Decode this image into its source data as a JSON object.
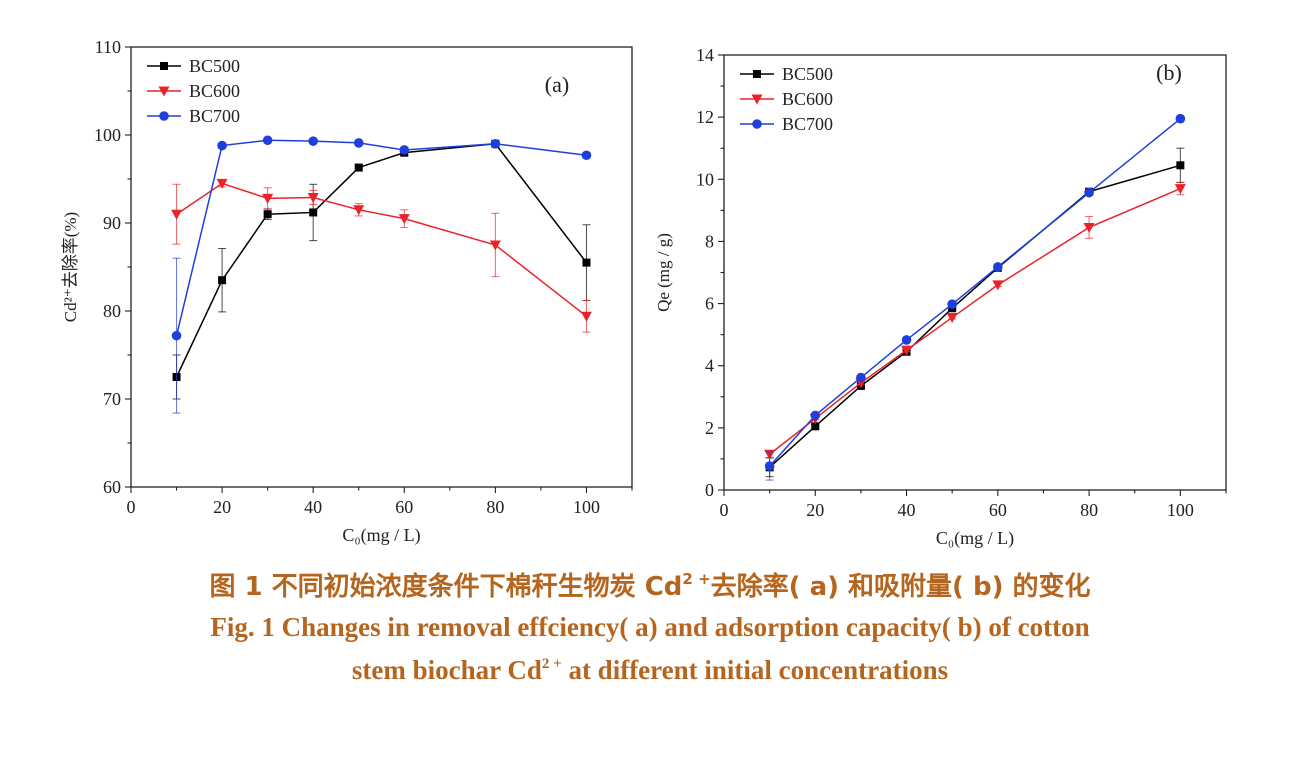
{
  "chart_data": [
    {
      "type": "line",
      "panel_label": "(a)",
      "ylabel": "Cd²⁺去除率(%)",
      "xlabel": "C₀(mg / L)",
      "xlim": [
        0,
        110
      ],
      "ylim": [
        60,
        110
      ],
      "x_ticks": [
        0,
        20,
        40,
        60,
        80,
        100
      ],
      "y_ticks": [
        60,
        70,
        80,
        90,
        100,
        110
      ],
      "x": [
        10,
        20,
        30,
        40,
        50,
        60,
        80,
        100
      ],
      "legend_position": "top-left",
      "grid": false,
      "series": [
        {
          "name": "BC500",
          "color": "#000000",
          "marker": "square",
          "values": [
            72.5,
            83.5,
            91.0,
            91.2,
            96.3,
            98.0,
            99.0,
            85.5
          ],
          "errors": [
            2.5,
            3.6,
            0.6,
            3.2,
            0.3,
            0.4,
            0.3,
            4.3
          ]
        },
        {
          "name": "BC600",
          "color": "#e8232a",
          "marker": "triangle-down",
          "values": [
            91.0,
            94.5,
            92.8,
            92.9,
            91.5,
            90.5,
            87.5,
            79.4
          ],
          "errors": [
            3.4,
            0.4,
            1.2,
            0.8,
            0.7,
            1.0,
            3.6,
            1.8
          ]
        },
        {
          "name": "BC700",
          "color": "#1f3fdb",
          "marker": "circle",
          "values": [
            77.2,
            98.8,
            99.4,
            99.3,
            99.1,
            98.3,
            99.0,
            97.7
          ],
          "errors": [
            8.8,
            0.2,
            0.2,
            0.2,
            0.2,
            0.3,
            0.2,
            0.3
          ]
        }
      ]
    },
    {
      "type": "line",
      "panel_label": "(b)",
      "ylabel": "Qe (mg / g)",
      "xlabel": "C₀(mg / L)",
      "xlim": [
        0,
        110
      ],
      "ylim": [
        0,
        14
      ],
      "x_ticks": [
        0,
        20,
        40,
        60,
        80,
        100
      ],
      "y_ticks": [
        0,
        2,
        4,
        6,
        8,
        10,
        12,
        14
      ],
      "x": [
        10,
        20,
        30,
        40,
        50,
        60,
        80,
        100
      ],
      "legend_position": "top-left",
      "grid": false,
      "series": [
        {
          "name": "BC500",
          "color": "#000000",
          "marker": "square",
          "values": [
            0.73,
            2.05,
            3.35,
            4.45,
            5.85,
            7.15,
            9.6,
            10.45
          ],
          "errors": [
            0.3,
            0.05,
            0.05,
            0.05,
            0.05,
            0.05,
            0.05,
            0.55
          ]
        },
        {
          "name": "BC600",
          "color": "#e8232a",
          "marker": "triangle-down",
          "values": [
            1.15,
            2.3,
            3.45,
            4.5,
            5.55,
            6.6,
            8.45,
            9.7
          ],
          "errors": [
            0.1,
            0.05,
            0.05,
            0.05,
            0.05,
            0.05,
            0.35,
            0.2
          ]
        },
        {
          "name": "BC700",
          "color": "#1f3fdb",
          "marker": "circle",
          "values": [
            0.77,
            2.4,
            3.62,
            4.83,
            5.98,
            7.18,
            9.57,
            11.95
          ],
          "errors": [
            0.45,
            0.05,
            0.05,
            0.05,
            0.05,
            0.05,
            0.05,
            0.05
          ]
        }
      ]
    }
  ],
  "caption": {
    "cn_prefix": "图 1    不同初始浓度条件下棉秆生物炭 Cd",
    "cn_sup": "2 +",
    "cn_suffix": "去除率( a) 和吸附量( b) 的变化",
    "en_line1": "Fig. 1    Changes in removal effciency( a)  and adsorption capacity( b)  of cotton",
    "en_line2_prefix": "stem biochar Cd",
    "en_line2_sup": "2 +",
    "en_line2_suffix": "  at different initial concentrations"
  }
}
